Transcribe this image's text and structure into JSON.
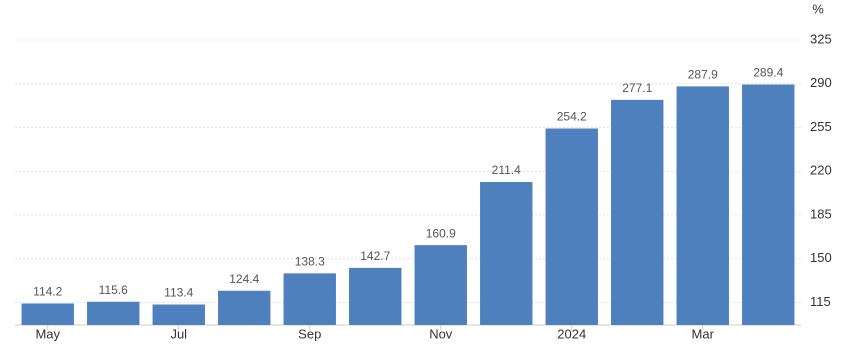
{
  "chart_data": {
    "type": "bar",
    "y_unit": "%",
    "categories": [
      "May",
      null,
      "Jul",
      null,
      "Sep",
      null,
      "Nov",
      null,
      "2024",
      null,
      "Mar",
      null
    ],
    "values": [
      114.2,
      115.6,
      113.4,
      124.4,
      138.3,
      142.7,
      160.9,
      211.4,
      254.2,
      277.1,
      287.9,
      289.4
    ],
    "color": "#4d80bd",
    "ylim": [
      97,
      333
    ],
    "yticks": [
      115,
      150,
      185,
      220,
      255,
      290,
      325
    ],
    "grid": true
  }
}
